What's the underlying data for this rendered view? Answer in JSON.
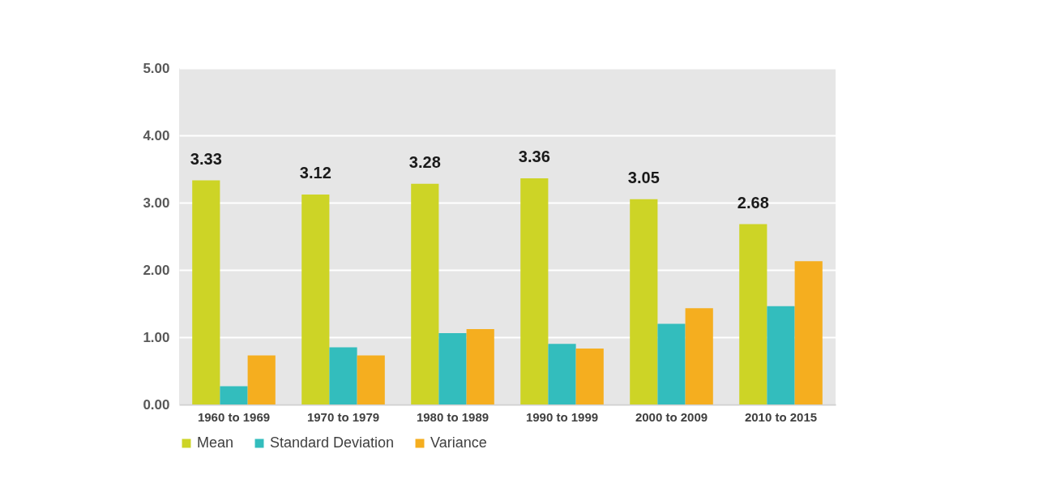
{
  "chart_data": {
    "type": "bar",
    "categories": [
      "1960 to 1969",
      "1970 to 1979",
      "1980 to 1989",
      "1990 to 1999",
      "2000 to 2009",
      "2010 to 2015"
    ],
    "series": [
      {
        "name": "Mean",
        "color": "#cdd426",
        "values": [
          3.33,
          3.12,
          3.28,
          3.36,
          3.05,
          2.68
        ],
        "value_labels": [
          "3.33",
          "3.12",
          "3.28",
          "3.36",
          "3.05",
          "2.68"
        ]
      },
      {
        "name": "Standard Deviation",
        "color": "#33bdbd",
        "values": [
          0.27,
          0.85,
          1.06,
          0.9,
          1.2,
          1.46
        ]
      },
      {
        "name": "Variance",
        "color": "#f5ae1f",
        "values": [
          0.73,
          0.73,
          1.12,
          0.83,
          1.43,
          2.13
        ]
      }
    ],
    "ylim": [
      0,
      5
    ],
    "yticks": [
      {
        "value": 0,
        "label": "0.00"
      },
      {
        "value": 1,
        "label": "1.00"
      },
      {
        "value": 2,
        "label": "2.00"
      },
      {
        "value": 3,
        "label": "3.00"
      },
      {
        "value": 4,
        "label": "4.00"
      },
      {
        "value": 5,
        "label": "5.00"
      }
    ],
    "grid": "y",
    "legend": "bottom"
  }
}
